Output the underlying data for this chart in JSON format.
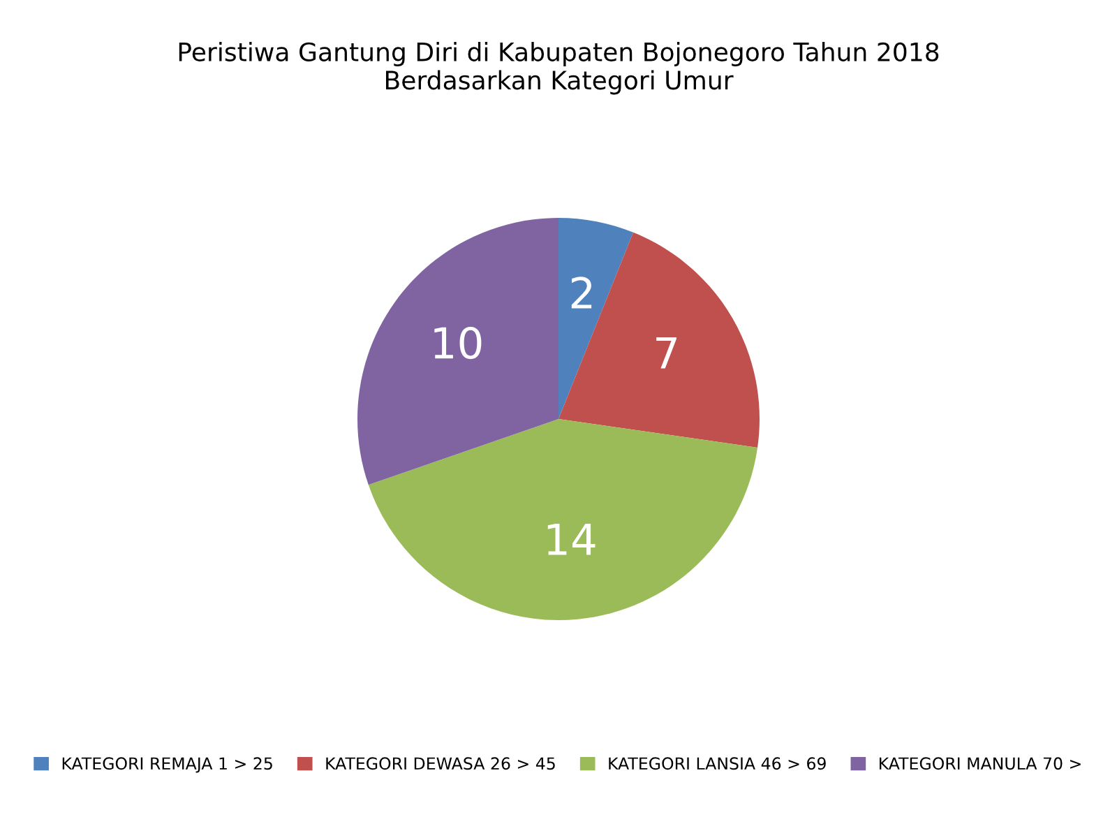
{
  "chart_data": {
    "type": "pie",
    "title": "Peristiwa Gantung Diri di Kabupaten Bojonegoro Tahun 2018\nBerdasarkan Kategori Umur",
    "categories": [
      "KATEGORI REMAJA 1 > 25",
      "KATEGORI DEWASA 26 > 45",
      "KATEGORI LANSIA 46 > 69",
      "KATEGORI MANULA 70 >"
    ],
    "values": [
      2,
      7,
      14,
      10
    ],
    "colors": [
      "#4f81bd",
      "#c0504d",
      "#9bbb59",
      "#8064a2"
    ],
    "data_labels": true,
    "legend": "bottom"
  }
}
